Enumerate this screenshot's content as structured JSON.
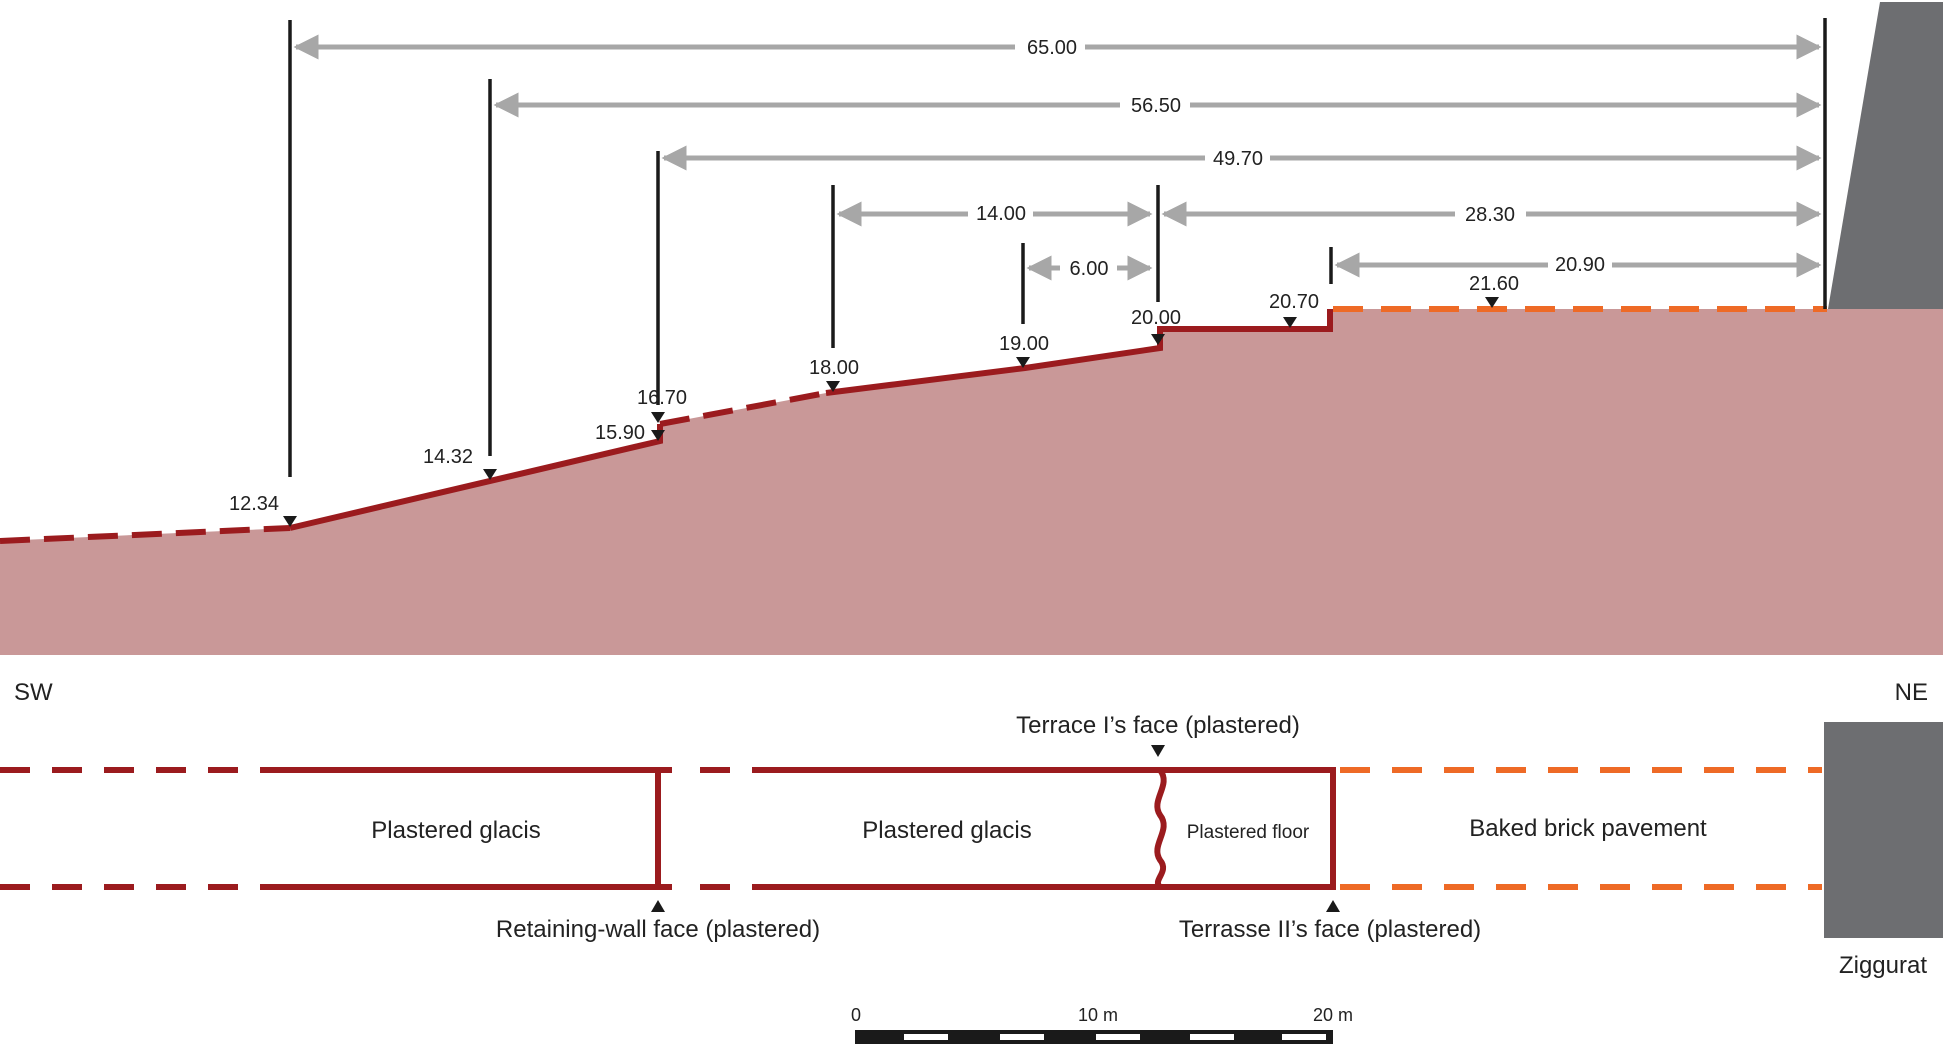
{
  "colors": {
    "ground_fill": "#c99898",
    "glacis_line": "#9b1b1e",
    "pavement_dash": "#ee6a26",
    "dimension_arrow": "#a7a7a7",
    "ziggurat_fill": "#6d6e71",
    "vertical_marker": "#1a1a1a"
  },
  "section": {
    "dimensions": [
      "65.00",
      "56.50",
      "49.70",
      "14.00",
      "6.00",
      "28.30",
      "20.90"
    ],
    "elevations": [
      "12.34",
      "14.32",
      "15.90",
      "16.70",
      "18.00",
      "19.00",
      "20.00",
      "20.70",
      "21.60"
    ]
  },
  "orientation": {
    "left": "SW",
    "right": "NE"
  },
  "plan": {
    "zones": [
      "Plastered glacis",
      "Plastered glacis",
      "Plastered floor",
      "Baked brick pavement"
    ],
    "callouts": {
      "terrace1": "Terrace I’s face (plastered)",
      "retaining": "Retaining-wall face (plastered)",
      "terrace2": "Terrasse II’s face (plastered)"
    },
    "ziggurat": "Ziggurat"
  },
  "scale_bar": {
    "labels": [
      "0",
      "10 m",
      "20 m"
    ]
  }
}
